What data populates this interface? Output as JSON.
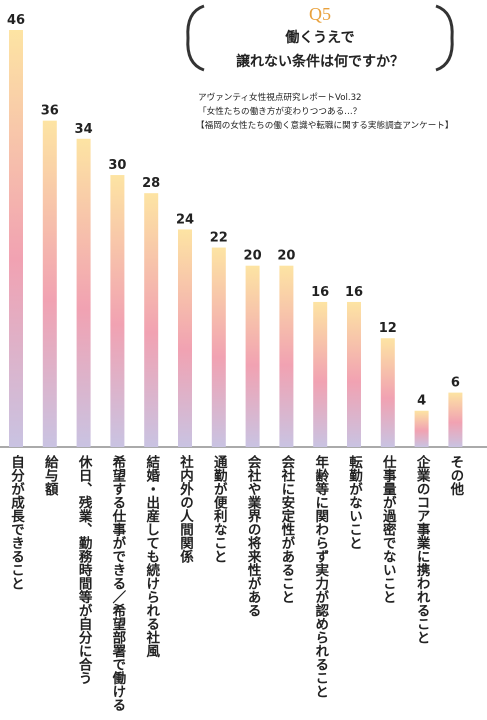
{
  "chart_data": {
    "type": "bar",
    "question_number": "Q5",
    "title_lines": [
      "働くうえで",
      "譲れない条件は何ですか？"
    ],
    "source_lines": [
      "アヴァンティ女性視点研究レポートVol.32",
      "「女性たちの働き方が変わりつつある…？",
      "【福岡の女性たちの働く意識や転職に関する実態調査アンケート】"
    ],
    "categories": [
      "自分が成長できること",
      "給与額",
      "休日、残業、勤務時間等が自分に合う",
      "希望する仕事ができる／希望部署で働ける",
      "結婚・出産しても続けられる社風",
      "社内外の人間関係",
      "通勤が便利なこと",
      "会社や業界の将来性がある",
      "会社に安定性があること",
      "年齢等に関わらず実力が認められること",
      "転勤がないこと",
      "仕事量が過密でないこと",
      "企業のコア事業に携われること",
      "その他"
    ],
    "values": [
      46,
      36,
      34,
      30,
      28,
      24,
      22,
      20,
      20,
      16,
      16,
      12,
      4,
      6
    ],
    "colors": [
      "#fde4a3",
      "#f1a2b2",
      "#c9c3e2"
    ]
  }
}
